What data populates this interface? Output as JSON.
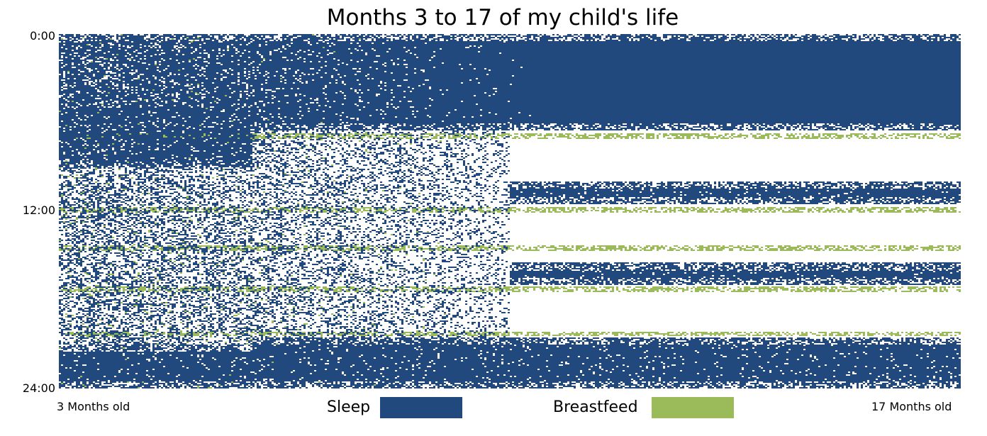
{
  "chart_data": {
    "type": "heatmap",
    "title": "Months 3 to 17 of my child's life",
    "x_tick_labels": [
      "3 Months old",
      "17 Months old"
    ],
    "x_range_months": [
      3,
      17
    ],
    "y_tick_labels": [
      "0:00",
      "12:00",
      "24:00"
    ],
    "y_range_hours": [
      0,
      24
    ],
    "y_axis_reversed": true,
    "grid": false,
    "legend_position": "bottom-center",
    "series": [
      {
        "name": "Sleep",
        "color": "#22497d"
      },
      {
        "name": "Breastfeed",
        "color": "#9bba59"
      }
    ],
    "background_color": "#ffffff",
    "approx_pattern": {
      "sleep_blocks_by_month": [
        {
          "months": [
            3,
            6
          ],
          "blocks_hours": [
            [
              0,
              9
            ],
            [
              21,
              24
            ]
          ],
          "fragmented_daytime_naps": true
        },
        {
          "months": [
            6,
            10
          ],
          "blocks_hours": [
            [
              0,
              6.5
            ],
            [
              20.5,
              24
            ]
          ],
          "fragmented_daytime_naps": true
        },
        {
          "months": [
            10,
            17
          ],
          "blocks_hours": [
            [
              0,
              6.5
            ],
            [
              10,
              11.5
            ],
            [
              15.5,
              17
            ],
            [
              20.5,
              24
            ]
          ],
          "fragmented_daytime_naps": false
        }
      ],
      "feeding_hours": [
        6.9,
        11.9,
        14.5,
        17.3,
        20.3
      ]
    }
  }
}
